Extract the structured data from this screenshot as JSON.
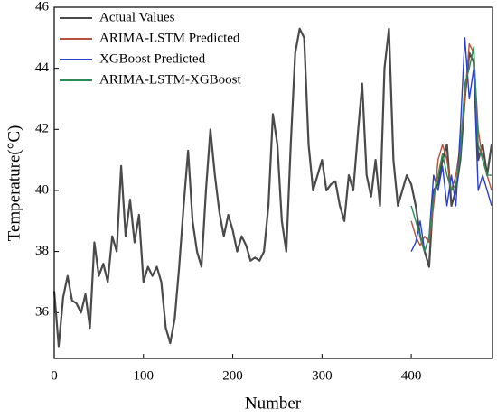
{
  "chart_data": {
    "type": "line",
    "xlabel": "Number",
    "ylabel": "Temperature(°C)",
    "x": [
      0,
      5,
      10,
      15,
      20,
      25,
      30,
      35,
      40,
      45,
      50,
      55,
      60,
      65,
      70,
      75,
      80,
      85,
      90,
      95,
      100,
      105,
      110,
      115,
      120,
      125,
      130,
      135,
      140,
      145,
      150,
      155,
      160,
      165,
      170,
      175,
      180,
      185,
      190,
      195,
      200,
      205,
      210,
      215,
      220,
      225,
      230,
      235,
      240,
      245,
      250,
      255,
      260,
      265,
      270,
      275,
      280,
      285,
      290,
      295,
      300,
      305,
      310,
      315,
      320,
      325,
      330,
      335,
      340,
      345,
      350,
      355,
      360,
      365,
      370,
      375,
      380,
      385,
      390,
      395,
      400,
      405,
      410,
      415,
      420,
      425,
      430,
      435,
      440,
      445,
      450,
      455,
      460,
      465,
      470,
      475,
      480,
      485,
      490
    ],
    "series": [
      {
        "name": "Actual Values",
        "color": "#4a4a4a",
        "values": [
          36.7,
          34.9,
          36.5,
          37.2,
          36.4,
          36.3,
          36.0,
          36.6,
          35.5,
          38.3,
          37.2,
          37.6,
          37.0,
          38.5,
          38.0,
          40.8,
          38.5,
          39.7,
          38.3,
          39.2,
          37.0,
          37.5,
          37.2,
          37.5,
          37.0,
          35.5,
          35.0,
          35.8,
          37.5,
          39.5,
          41.3,
          39.0,
          38.0,
          37.5,
          40.0,
          42.0,
          40.5,
          39.3,
          38.5,
          39.2,
          38.7,
          38.0,
          38.5,
          38.2,
          37.7,
          37.8,
          37.7,
          38.0,
          39.5,
          42.5,
          41.5,
          39.0,
          38.0,
          41.5,
          44.5,
          45.3,
          45.0,
          41.5,
          40.0,
          40.5,
          41.0,
          40.0,
          40.2,
          40.3,
          39.5,
          39.0,
          40.5,
          40.0,
          41.8,
          43.5,
          40.5,
          39.8,
          41.0,
          39.5,
          44.0,
          45.3,
          41.0,
          39.5,
          40.0,
          40.5,
          40.2,
          39.5,
          38.5,
          38.0,
          37.5,
          40.0,
          40.2,
          41.0,
          41.5,
          39.5,
          40.0,
          41.0,
          43.0,
          44.5,
          44.2,
          41.0,
          41.5,
          40.5,
          41.5
        ]
      },
      {
        "name": "ARIMA-LSTM Predicted",
        "color": "#b5533c",
        "values": [
          null,
          null,
          null,
          null,
          null,
          null,
          null,
          null,
          null,
          null,
          null,
          null,
          null,
          null,
          null,
          null,
          null,
          null,
          null,
          null,
          null,
          null,
          null,
          null,
          null,
          null,
          null,
          null,
          null,
          null,
          null,
          null,
          null,
          null,
          null,
          null,
          null,
          null,
          null,
          null,
          null,
          null,
          null,
          null,
          null,
          null,
          null,
          null,
          null,
          null,
          null,
          null,
          null,
          null,
          null,
          null,
          null,
          null,
          null,
          null,
          null,
          null,
          null,
          null,
          null,
          null,
          null,
          null,
          null,
          null,
          null,
          null,
          null,
          null,
          null,
          null,
          null,
          null,
          null,
          null,
          39.0,
          38.5,
          38.2,
          38.5,
          38.3,
          39.5,
          41.0,
          41.5,
          41.0,
          40.0,
          40.5,
          41.5,
          43.0,
          44.8,
          44.5,
          42.0,
          41.0,
          40.5,
          40.0
        ]
      },
      {
        "name": "XGBoost Predicted",
        "color": "#2a3fd0",
        "values": [
          null,
          null,
          null,
          null,
          null,
          null,
          null,
          null,
          null,
          null,
          null,
          null,
          null,
          null,
          null,
          null,
          null,
          null,
          null,
          null,
          null,
          null,
          null,
          null,
          null,
          null,
          null,
          null,
          null,
          null,
          null,
          null,
          null,
          null,
          null,
          null,
          null,
          null,
          null,
          null,
          null,
          null,
          null,
          null,
          null,
          null,
          null,
          null,
          null,
          null,
          null,
          null,
          null,
          null,
          null,
          null,
          null,
          null,
          null,
          null,
          null,
          null,
          null,
          null,
          null,
          null,
          null,
          null,
          null,
          null,
          null,
          null,
          null,
          null,
          null,
          null,
          null,
          null,
          null,
          null,
          38.0,
          38.3,
          39.0,
          38.0,
          38.5,
          40.5,
          40.0,
          40.8,
          39.5,
          40.5,
          39.5,
          42.0,
          45.0,
          43.0,
          44.0,
          40.0,
          40.5,
          40.0,
          39.5
        ]
      },
      {
        "name": "ARIMA-LSTM-XGBoost",
        "color": "#2e8b57",
        "values": [
          null,
          null,
          null,
          null,
          null,
          null,
          null,
          null,
          null,
          null,
          null,
          null,
          null,
          null,
          null,
          null,
          null,
          null,
          null,
          null,
          null,
          null,
          null,
          null,
          null,
          null,
          null,
          null,
          null,
          null,
          null,
          null,
          null,
          null,
          null,
          null,
          null,
          null,
          null,
          null,
          null,
          null,
          null,
          null,
          null,
          null,
          null,
          null,
          null,
          null,
          null,
          null,
          null,
          null,
          null,
          null,
          null,
          null,
          null,
          null,
          null,
          null,
          null,
          null,
          null,
          null,
          null,
          null,
          null,
          null,
          null,
          null,
          null,
          null,
          null,
          null,
          null,
          null,
          null,
          null,
          39.5,
          39.0,
          38.5,
          38.0,
          38.5,
          39.8,
          40.5,
          41.2,
          40.5,
          40.0,
          40.2,
          41.2,
          43.5,
          44.0,
          44.7,
          41.5,
          41.0,
          40.5,
          40.5
        ]
      }
    ],
    "xlim": [
      0,
      491
    ],
    "xticks": [
      0,
      100,
      200,
      300,
      400
    ],
    "ylim": [
      34.5,
      46
    ],
    "yticks": [
      36,
      38,
      40,
      42,
      44,
      46
    ],
    "legend": "upper left",
    "grid": false
  }
}
